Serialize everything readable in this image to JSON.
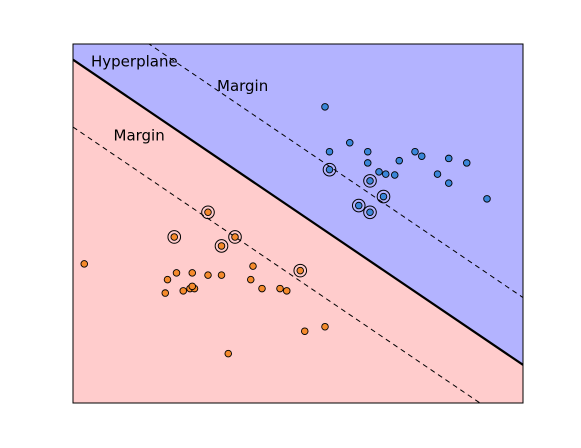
{
  "chart_data": {
    "type": "scatter",
    "title": "",
    "xlabel": "",
    "ylabel": "",
    "xlim": [
      0,
      10
    ],
    "ylim": [
      0,
      8
    ],
    "grid": false,
    "ticks_visible": false,
    "colors": {
      "positive_region": "#b3b3ff",
      "negative_region": "#ffcccc",
      "positive_point": "#3a86d9",
      "negative_point": "#f58a2c",
      "line": "#000000"
    },
    "hyperplane": {
      "slope": -0.68,
      "intercept": 7.65,
      "label": "Hyperplane"
    },
    "margins": [
      {
        "slope": -0.68,
        "intercept": 9.15,
        "label": "Margin"
      },
      {
        "slope": -0.68,
        "intercept": 6.15,
        "label": "Margin"
      }
    ],
    "annotations": [
      {
        "text": "Hyperplane",
        "x": 0.4,
        "y": 7.5
      },
      {
        "text": "Margin",
        "x": 3.2,
        "y": 6.95
      },
      {
        "text": "Margin",
        "x": 0.9,
        "y": 5.85
      }
    ],
    "series": [
      {
        "class": "positive",
        "points": [
          [
            5.6,
            6.6
          ],
          [
            5.7,
            5.6
          ],
          [
            6.15,
            5.8
          ],
          [
            6.55,
            5.6
          ],
          [
            6.55,
            5.35
          ],
          [
            6.8,
            5.15
          ],
          [
            6.95,
            5.1
          ],
          [
            7.15,
            5.08
          ],
          [
            7.25,
            5.4
          ],
          [
            7.6,
            5.6
          ],
          [
            7.75,
            5.5
          ],
          [
            8.1,
            5.1
          ],
          [
            8.35,
            4.9
          ],
          [
            8.35,
            5.45
          ],
          [
            8.75,
            5.35
          ],
          [
            9.2,
            4.55
          ],
          [
            5.7,
            5.2
          ],
          [
            6.6,
            4.95
          ],
          [
            6.35,
            4.4
          ],
          [
            6.6,
            4.25
          ],
          [
            6.9,
            4.6
          ]
        ],
        "support_vectors": [
          [
            5.7,
            5.2
          ],
          [
            6.6,
            4.95
          ],
          [
            6.35,
            4.4
          ],
          [
            6.6,
            4.25
          ],
          [
            6.9,
            4.6
          ]
        ]
      },
      {
        "class": "negative",
        "points": [
          [
            0.25,
            3.1
          ],
          [
            2.1,
            2.75
          ],
          [
            2.3,
            2.9
          ],
          [
            2.65,
            2.9
          ],
          [
            3.0,
            2.85
          ],
          [
            3.3,
            2.85
          ],
          [
            3.95,
            2.75
          ],
          [
            4.2,
            2.55
          ],
          [
            2.6,
            2.55
          ],
          [
            2.7,
            2.55
          ],
          [
            2.65,
            2.6
          ],
          [
            2.45,
            2.5
          ],
          [
            3.45,
            1.1
          ],
          [
            4.75,
            2.5
          ],
          [
            5.15,
            1.6
          ],
          [
            5.6,
            1.7
          ],
          [
            2.05,
            2.45
          ],
          [
            2.25,
            3.7
          ],
          [
            3.0,
            4.25
          ],
          [
            3.3,
            3.5
          ],
          [
            3.6,
            3.7
          ],
          [
            5.05,
            2.95
          ],
          [
            4.0,
            3.05
          ],
          [
            4.6,
            2.55
          ]
        ],
        "support_vectors": [
          [
            2.25,
            3.7
          ],
          [
            3.0,
            4.25
          ],
          [
            3.3,
            3.5
          ],
          [
            3.6,
            3.7
          ],
          [
            5.05,
            2.95
          ]
        ]
      }
    ]
  }
}
